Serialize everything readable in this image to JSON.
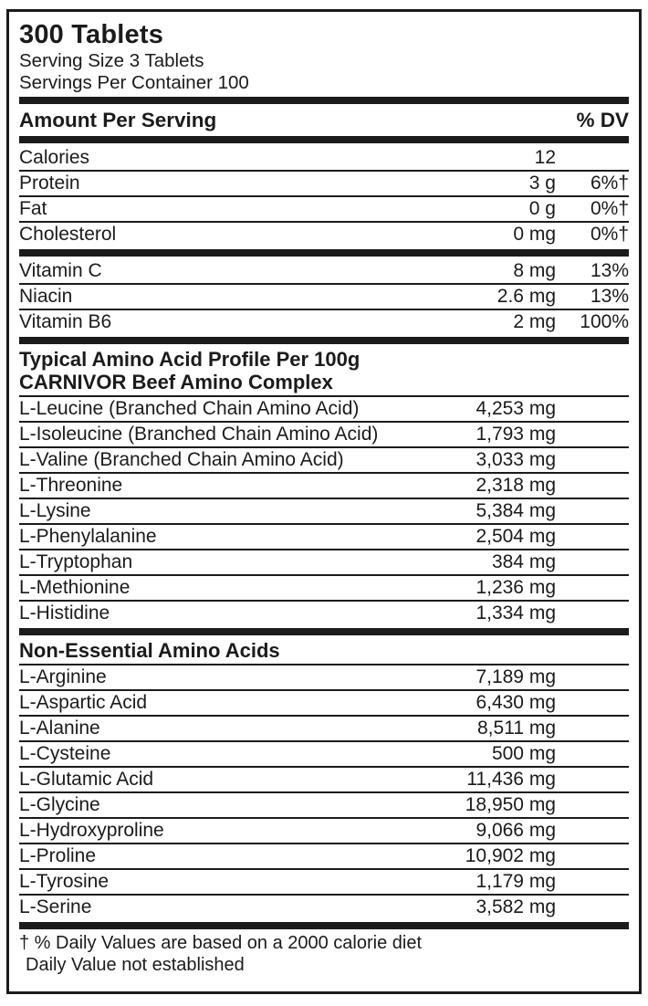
{
  "title": "300 Tablets",
  "serving_size": "Serving Size 3 Tablets",
  "servings_per_container": "Servings Per Container 100",
  "header": {
    "amount": "Amount Per Serving",
    "dv": "% DV"
  },
  "main_rows": [
    {
      "name": "Calories",
      "amount": "12",
      "dv": ""
    },
    {
      "name": "Protein",
      "amount": "3 g",
      "dv": "6%†"
    },
    {
      "name": "Fat",
      "amount": "0 g",
      "dv": "0%†"
    },
    {
      "name": "Cholesterol",
      "amount": "0 mg",
      "dv": "0%†"
    }
  ],
  "vitamin_rows": [
    {
      "name": "Vitamin C",
      "amount": "8 mg",
      "dv": "13%"
    },
    {
      "name": "Niacin",
      "amount": "2.6 mg",
      "dv": "13%"
    },
    {
      "name": "Vitamin B6",
      "amount": "2 mg",
      "dv": "100%"
    }
  ],
  "amino_heading_1": "Typical Amino Acid Profile Per 100g",
  "amino_heading_2": "CARNIVOR Beef Amino Complex",
  "amino_rows": [
    {
      "name": "L-Leucine (Branched Chain Amino Acid)",
      "amount": "4,253 mg",
      "dv": ""
    },
    {
      "name": "L-Isoleucine (Branched Chain Amino Acid)",
      "amount": "1,793 mg",
      "dv": ""
    },
    {
      "name": "L-Valine (Branched Chain Amino Acid)",
      "amount": "3,033 mg",
      "dv": ""
    },
    {
      "name": "L-Threonine",
      "amount": "2,318 mg",
      "dv": ""
    },
    {
      "name": "L-Lysine",
      "amount": "5,384 mg",
      "dv": ""
    },
    {
      "name": "L-Phenylalanine",
      "amount": "2,504 mg",
      "dv": ""
    },
    {
      "name": "L-Tryptophan",
      "amount": "384 mg",
      "dv": ""
    },
    {
      "name": "L-Methionine",
      "amount": "1,236 mg",
      "dv": ""
    },
    {
      "name": "L-Histidine",
      "amount": "1,334 mg",
      "dv": ""
    }
  ],
  "non_essential_heading": "Non-Essential Amino Acids",
  "non_essential_rows": [
    {
      "name": "L-Arginine",
      "amount": "7,189 mg",
      "dv": ""
    },
    {
      "name": "L-Aspartic Acid",
      "amount": "6,430 mg",
      "dv": ""
    },
    {
      "name": "L-Alanine",
      "amount": "8,511 mg",
      "dv": ""
    },
    {
      "name": "L-Cysteine",
      "amount": "500 mg",
      "dv": ""
    },
    {
      "name": "L-Glutamic Acid",
      "amount": "11,436 mg",
      "dv": ""
    },
    {
      "name": "L-Glycine",
      "amount": "18,950 mg",
      "dv": ""
    },
    {
      "name": "L-Hydroxyproline",
      "amount": "9,066 mg",
      "dv": ""
    },
    {
      "name": "L-Proline",
      "amount": "10,902 mg",
      "dv": ""
    },
    {
      "name": "L-Tyrosine",
      "amount": "1,179 mg",
      "dv": ""
    },
    {
      "name": "L-Serine",
      "amount": "3,582 mg",
      "dv": ""
    }
  ],
  "footnote_1": "† % Daily Values are based on a 2000 calorie diet",
  "footnote_2": "Daily Value not established",
  "colors": {
    "text": "#1b1b1b",
    "bar": "#1b1b1b",
    "background": "#ffffff",
    "border": "#1b1b1b"
  }
}
